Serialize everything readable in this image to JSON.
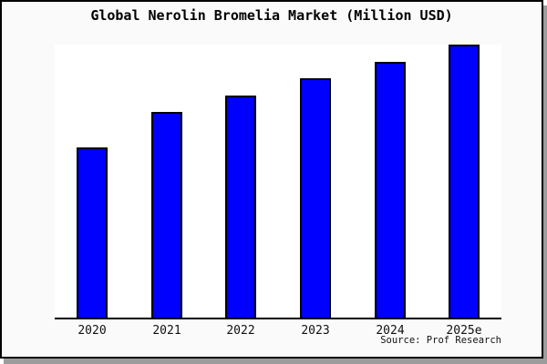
{
  "title": "Global Nerolin Bromelia Market (Million USD)",
  "source": "Source: Prof Research",
  "colors": {
    "bar_fill": "#0000ff",
    "bar_border": "#000000",
    "frame_background": "#fafafa",
    "plot_background": "#ffffff",
    "axis": "#000000",
    "frame_border": "#000000",
    "shadow": "#9c9c9c",
    "text": "#000000"
  },
  "chart_data": {
    "type": "bar",
    "title": "Global Nerolin Bromelia Market (Million USD)",
    "categories": [
      "2020",
      "2021",
      "2022",
      "2023",
      "2024",
      "2025e"
    ],
    "values": [
      62.3,
      75.2,
      81.3,
      87.8,
      93.7,
      100
    ],
    "xlabel": "",
    "ylabel": "",
    "ylim": [
      0,
      100
    ],
    "grid": false,
    "legend": false,
    "y_axis_labels_visible": false,
    "source": "Source: Prof Research"
  }
}
